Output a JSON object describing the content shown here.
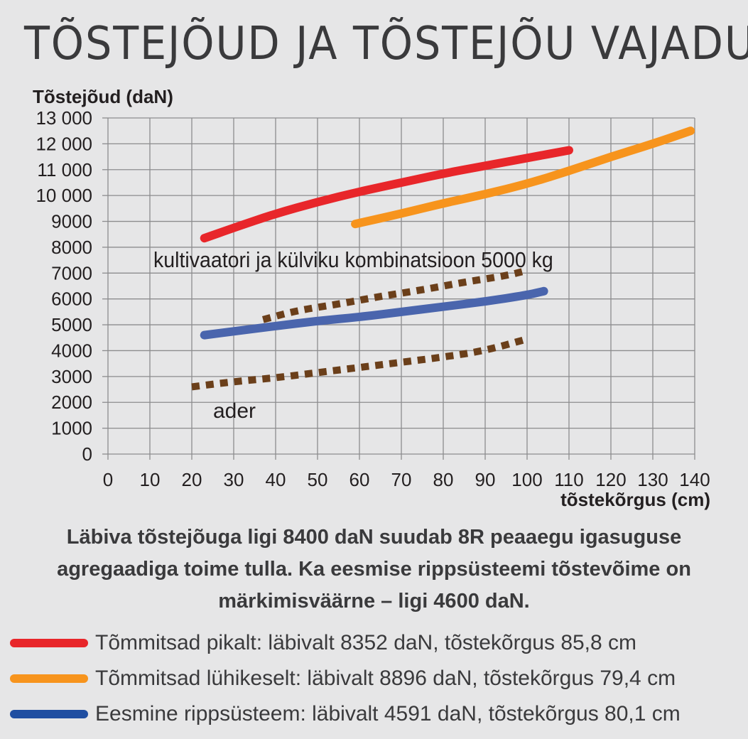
{
  "title": "TÕSTEJÕUD JA TÕSTEJÕU VAJADUS",
  "chart_data": {
    "type": "line",
    "ylabel": "Tõstejõud (daN)",
    "xlabel": "tõstekõrgus (cm)",
    "xlim": [
      0,
      140
    ],
    "ylim": [
      0,
      13000
    ],
    "x_ticks": [
      "0",
      "10",
      "20",
      "30",
      "40",
      "50",
      "60",
      "70",
      "80",
      "90",
      "100",
      "110",
      "120",
      "130",
      "140"
    ],
    "y_ticks": [
      "0",
      "1000",
      "2000",
      "3000",
      "4000",
      "5000",
      "6000",
      "7000",
      "8000",
      "9000",
      "10 000",
      "11 000",
      "12 000",
      "13 000"
    ],
    "grid": true,
    "series": [
      {
        "name": "Tõmmitsad pikalt: läbivalt 8352 daN, tõstekõrgus 85,8 cm",
        "color": "#e8262a",
        "style": "solid",
        "points": [
          [
            23,
            8350
          ],
          [
            30,
            8750
          ],
          [
            40,
            9300
          ],
          [
            50,
            9750
          ],
          [
            60,
            10150
          ],
          [
            70,
            10500
          ],
          [
            80,
            10850
          ],
          [
            90,
            11150
          ],
          [
            100,
            11450
          ],
          [
            110,
            11750
          ]
        ]
      },
      {
        "name": "Tõmmitsad lühikeselt: läbivalt 8896 daN, tõstekõrgus 79,4 cm",
        "color": "#f7941d",
        "style": "solid",
        "points": [
          [
            59,
            8900
          ],
          [
            70,
            9300
          ],
          [
            80,
            9700
          ],
          [
            90,
            10050
          ],
          [
            100,
            10450
          ],
          [
            110,
            10950
          ],
          [
            120,
            11500
          ],
          [
            130,
            12000
          ],
          [
            139,
            12500
          ]
        ]
      },
      {
        "name": "Eesmine rippsüsteem: läbivalt 4591 daN, tõstekõrgus 80,1 cm",
        "color": "#4a65ad",
        "style": "solid",
        "points": [
          [
            23,
            4600
          ],
          [
            30,
            4750
          ],
          [
            40,
            4950
          ],
          [
            50,
            5150
          ],
          [
            60,
            5300
          ],
          [
            70,
            5500
          ],
          [
            80,
            5700
          ],
          [
            90,
            5900
          ],
          [
            100,
            6150
          ],
          [
            104,
            6300
          ]
        ]
      },
      {
        "name": "kultivaatori ja külviku kombinatsioon 5000 kg",
        "color": "#6b3f1a",
        "style": "dotted",
        "points": [
          [
            37,
            5200
          ],
          [
            45,
            5550
          ],
          [
            55,
            5800
          ],
          [
            65,
            6100
          ],
          [
            75,
            6350
          ],
          [
            85,
            6650
          ],
          [
            95,
            6900
          ],
          [
            100,
            7100
          ]
        ]
      },
      {
        "name": "ader",
        "color": "#6b3f1a",
        "style": "dotted",
        "points": [
          [
            20,
            2600
          ],
          [
            30,
            2800
          ],
          [
            40,
            2950
          ],
          [
            50,
            3150
          ],
          [
            60,
            3350
          ],
          [
            70,
            3550
          ],
          [
            80,
            3750
          ],
          [
            90,
            4000
          ],
          [
            100,
            4450
          ]
        ]
      }
    ],
    "annotations": [
      {
        "text": "kultivaatori ja külviku kombinatsioon 5000 kg"
      },
      {
        "text": "ader"
      }
    ]
  },
  "caption": "Läbiva tõstejõuga ligi 8400 daN suudab 8R peaaegu igasuguse agregaadiga toime tulla. Ka eesmise rippsüsteemi tõstevõime on märkimisväärne – ligi 4600 daN.",
  "legend": [
    {
      "label": "Tõmmitsad pikalt: läbivalt 8352 daN, tõstekõrgus 85,8 cm",
      "color": "#e8262a"
    },
    {
      "label": "Tõmmitsad lühikeselt: läbivalt 8896 daN, tõstekõrgus 79,4 cm",
      "color": "#f7941d"
    },
    {
      "label": "Eesmine rippsüsteem: läbivalt 4591 daN, tõstekõrgus 80,1 cm",
      "color": "#1f4ea1"
    }
  ]
}
